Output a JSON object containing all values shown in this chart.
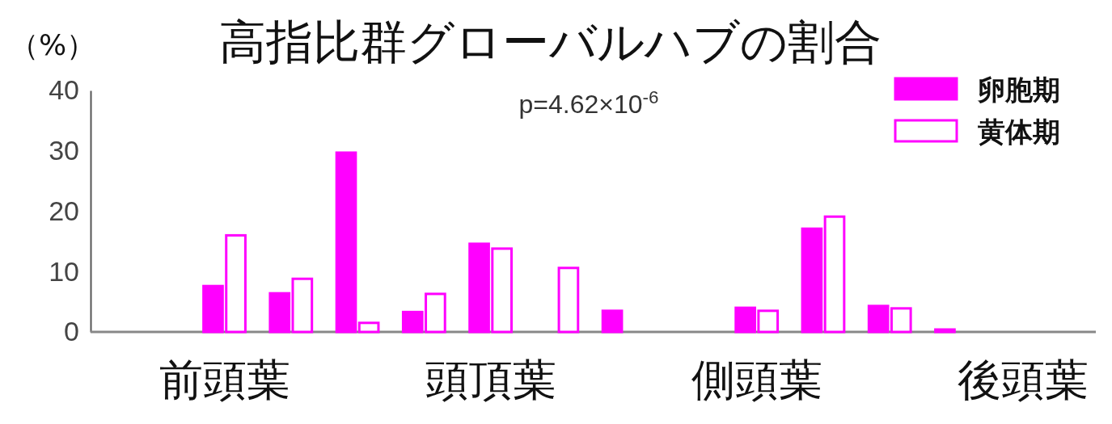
{
  "chart_data": {
    "type": "bar",
    "title": "高指比群グローバルハブの割合",
    "ylabel": "（%）",
    "categories": [
      null,
      "前頭葉",
      null,
      null,
      null,
      "頭頂葉",
      null,
      null,
      null,
      "側頭葉",
      null,
      null,
      null,
      "後頭葉"
    ],
    "series": [
      {
        "name": "卵胞期",
        "color": "#ff00ff",
        "values": [
          0,
          7.6,
          6.4,
          29.7,
          3.3,
          14.6,
          0,
          3.5,
          0,
          4.0,
          17.1,
          4.3,
          0.4,
          0
        ]
      },
      {
        "name": "黄体期",
        "color": "#ff00ff",
        "values": [
          0,
          16.0,
          8.8,
          1.5,
          6.3,
          13.8,
          10.6,
          0,
          0,
          3.5,
          19.1,
          3.9,
          0,
          0
        ]
      }
    ],
    "ylim": [
      0,
      40
    ],
    "yticks": [
      0,
      10,
      20,
      30,
      40
    ],
    "grid": false,
    "legend": "top right",
    "annotations": [
      "p=4.62×10$^{-6}$"
    ]
  }
}
